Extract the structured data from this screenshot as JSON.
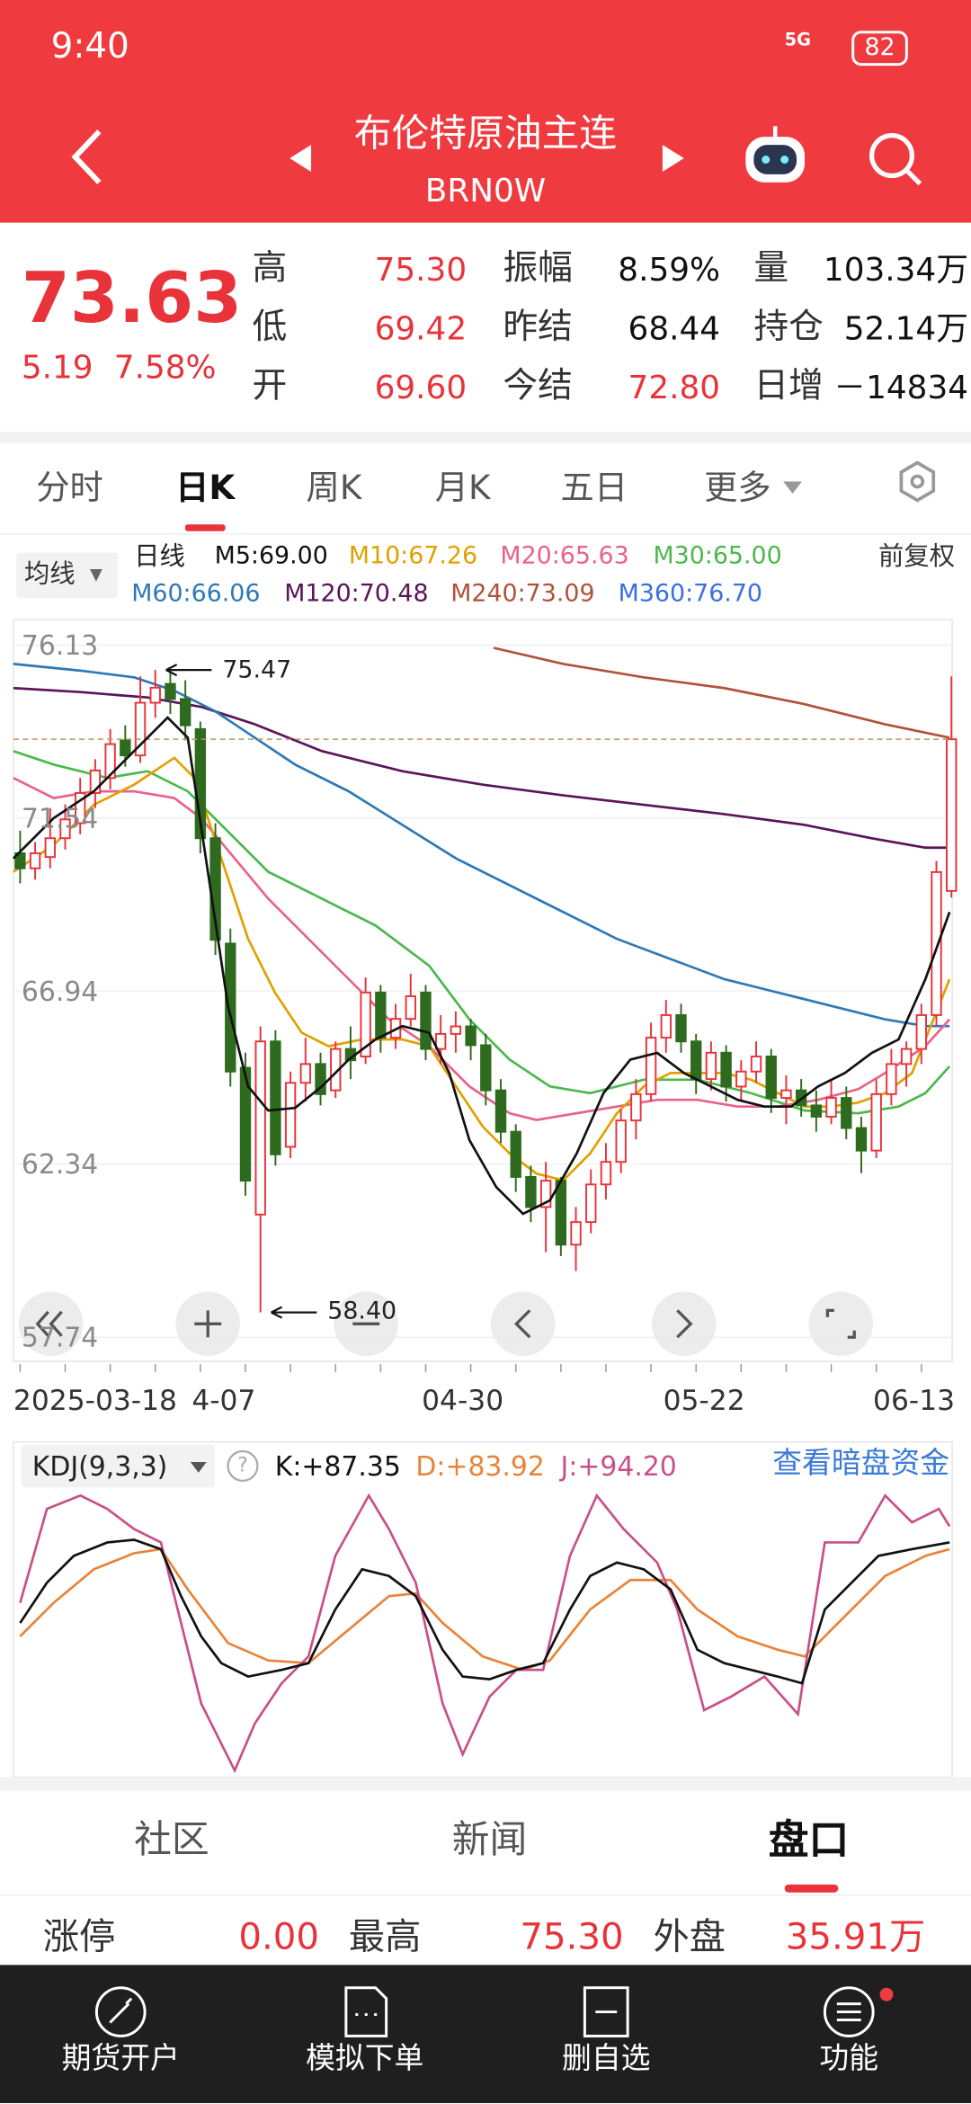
{
  "status": {
    "time": "9:40",
    "network": "5G",
    "battery": "82"
  },
  "header": {
    "title": "布伦特原油主连",
    "code": "BRN0W"
  },
  "quote": {
    "price": "73.63",
    "change": "5.19",
    "change_pct": "7.58%",
    "stats": [
      {
        "label": "高",
        "value": "75.30"
      },
      {
        "label": "低",
        "value": "69.42"
      },
      {
        "label": "开",
        "value": "69.60"
      },
      {
        "label": "振幅",
        "value": "8.59%"
      },
      {
        "label": "昨结",
        "value": "68.44"
      },
      {
        "label": "今结",
        "value": "72.80"
      },
      {
        "label": "量",
        "value": "103.34万"
      },
      {
        "label": "持仓",
        "value": "52.14万"
      },
      {
        "label": "日增",
        "value": "－14834"
      }
    ]
  },
  "tabs": [
    "分时",
    "日K",
    "周K",
    "月K",
    "五日",
    "更多"
  ],
  "ma_bar": {
    "selector": "均线",
    "period": "日线",
    "adjust": "前复权",
    "items": [
      {
        "label": "M5:69.00",
        "color": "#111111"
      },
      {
        "label": "M10:67.26",
        "color": "#e0a100"
      },
      {
        "label": "M20:65.63",
        "color": "#e8638a"
      },
      {
        "label": "M30:65.00",
        "color": "#4cb84c"
      },
      {
        "label": "M60:66.06",
        "color": "#2e79b5"
      },
      {
        "label": "M120:70.48",
        "color": "#5a1458"
      },
      {
        "label": "M240:73.09",
        "color": "#b0523a"
      },
      {
        "label": "M360:76.70",
        "color": "#3b6fe0"
      }
    ]
  },
  "kline": {
    "ylim": [
      57.74,
      76.13
    ],
    "yticks": [
      57.74,
      62.34,
      66.94,
      71.54,
      76.13
    ],
    "ohlc": [
      [
        70.6,
        71.2,
        69.8,
        70.2
      ],
      [
        70.2,
        70.9,
        69.9,
        70.6
      ],
      [
        70.5,
        71.8,
        70.2,
        71.0
      ],
      [
        71.0,
        71.9,
        70.7,
        71.5
      ],
      [
        71.4,
        72.6,
        71.1,
        72.2
      ],
      [
        72.2,
        73.1,
        71.8,
        72.8
      ],
      [
        72.6,
        73.9,
        72.3,
        73.5
      ],
      [
        73.6,
        74.0,
        72.9,
        73.2
      ],
      [
        73.2,
        75.3,
        73.0,
        74.6
      ],
      [
        74.6,
        75.47,
        74.2,
        75.0
      ],
      [
        75.1,
        75.4,
        74.3,
        74.7
      ],
      [
        74.7,
        75.2,
        73.6,
        74.0
      ],
      [
        73.9,
        74.1,
        70.6,
        71.0
      ],
      [
        71.0,
        71.4,
        67.9,
        68.3
      ],
      [
        68.2,
        68.6,
        64.4,
        64.8
      ],
      [
        64.9,
        65.3,
        61.5,
        61.9
      ],
      [
        61.0,
        66.0,
        58.4,
        65.6
      ],
      [
        65.6,
        65.9,
        62.3,
        62.6
      ],
      [
        62.8,
        64.8,
        62.5,
        64.5
      ],
      [
        64.5,
        65.7,
        64.0,
        65.0
      ],
      [
        65.0,
        65.3,
        63.9,
        64.2
      ],
      [
        64.3,
        65.6,
        64.1,
        65.4
      ],
      [
        65.4,
        66.0,
        64.6,
        65.1
      ],
      [
        65.2,
        67.3,
        65.0,
        66.9
      ],
      [
        66.9,
        67.1,
        65.3,
        65.7
      ],
      [
        65.7,
        66.6,
        65.4,
        66.2
      ],
      [
        66.2,
        67.4,
        66.0,
        66.8
      ],
      [
        66.9,
        67.1,
        65.1,
        65.4
      ],
      [
        65.4,
        66.3,
        65.0,
        65.8
      ],
      [
        65.8,
        66.4,
        65.3,
        66.0
      ],
      [
        66.0,
        66.2,
        65.1,
        65.5
      ],
      [
        65.5,
        65.8,
        63.9,
        64.3
      ],
      [
        64.3,
        64.6,
        62.9,
        63.2
      ],
      [
        63.2,
        63.4,
        61.6,
        62.0
      ],
      [
        62.0,
        62.3,
        60.8,
        61.2
      ],
      [
        61.2,
        62.4,
        60.0,
        61.9
      ],
      [
        61.9,
        62.0,
        59.9,
        60.2
      ],
      [
        60.2,
        61.2,
        59.5,
        60.8
      ],
      [
        60.8,
        62.2,
        60.5,
        61.8
      ],
      [
        61.8,
        62.9,
        61.4,
        62.4
      ],
      [
        62.4,
        63.8,
        62.1,
        63.5
      ],
      [
        63.5,
        64.6,
        63.0,
        64.2
      ],
      [
        64.2,
        66.1,
        64.0,
        65.7
      ],
      [
        65.7,
        66.7,
        65.3,
        66.3
      ],
      [
        66.3,
        66.6,
        65.3,
        65.6
      ],
      [
        65.6,
        65.8,
        64.2,
        64.6
      ],
      [
        64.6,
        65.6,
        64.3,
        65.3
      ],
      [
        65.3,
        65.5,
        64.0,
        64.4
      ],
      [
        64.4,
        65.1,
        64.0,
        64.8
      ],
      [
        64.8,
        65.6,
        64.5,
        65.2
      ],
      [
        65.2,
        65.4,
        63.7,
        64.1
      ],
      [
        64.1,
        64.7,
        63.4,
        64.3
      ],
      [
        64.3,
        64.6,
        63.6,
        63.9
      ],
      [
        63.9,
        64.3,
        63.2,
        63.6
      ],
      [
        63.6,
        64.6,
        63.4,
        64.1
      ],
      [
        64.1,
        64.4,
        63.0,
        63.3
      ],
      [
        63.3,
        63.6,
        62.1,
        62.7
      ],
      [
        62.7,
        64.6,
        62.5,
        64.2
      ],
      [
        64.2,
        65.4,
        63.9,
        65.0
      ],
      [
        65.0,
        65.6,
        64.4,
        65.4
      ],
      [
        65.4,
        66.6,
        65.0,
        66.3
      ],
      [
        66.3,
        70.4,
        66.0,
        70.1
      ],
      [
        69.6,
        75.3,
        69.42,
        73.63
      ]
    ],
    "annotations": [
      {
        "text": "75.47",
        "candle": 9,
        "at": "high"
      },
      {
        "text": "58.40",
        "candle": 16,
        "at": "low"
      }
    ],
    "dates": [
      "2025-03-18",
      "4-07",
      "04-30",
      "05-22",
      "06-13"
    ]
  },
  "kdj": {
    "title": "KDJ(9,3,3)",
    "k": "K:+87.35",
    "d": "D:+83.92",
    "j": "J:+94.20",
    "link": "查看暗盘资金"
  },
  "bottom_tabs": [
    "社区",
    "新闻",
    "盘口"
  ],
  "depth_row": [
    {
      "label": "涨停",
      "value": "0.00"
    },
    {
      "label": "最高",
      "value": "75.30"
    },
    {
      "label": "外盘",
      "value": "35.91万"
    }
  ],
  "nav": [
    "期货开户",
    "模拟下单",
    "删自选",
    "功能"
  ]
}
